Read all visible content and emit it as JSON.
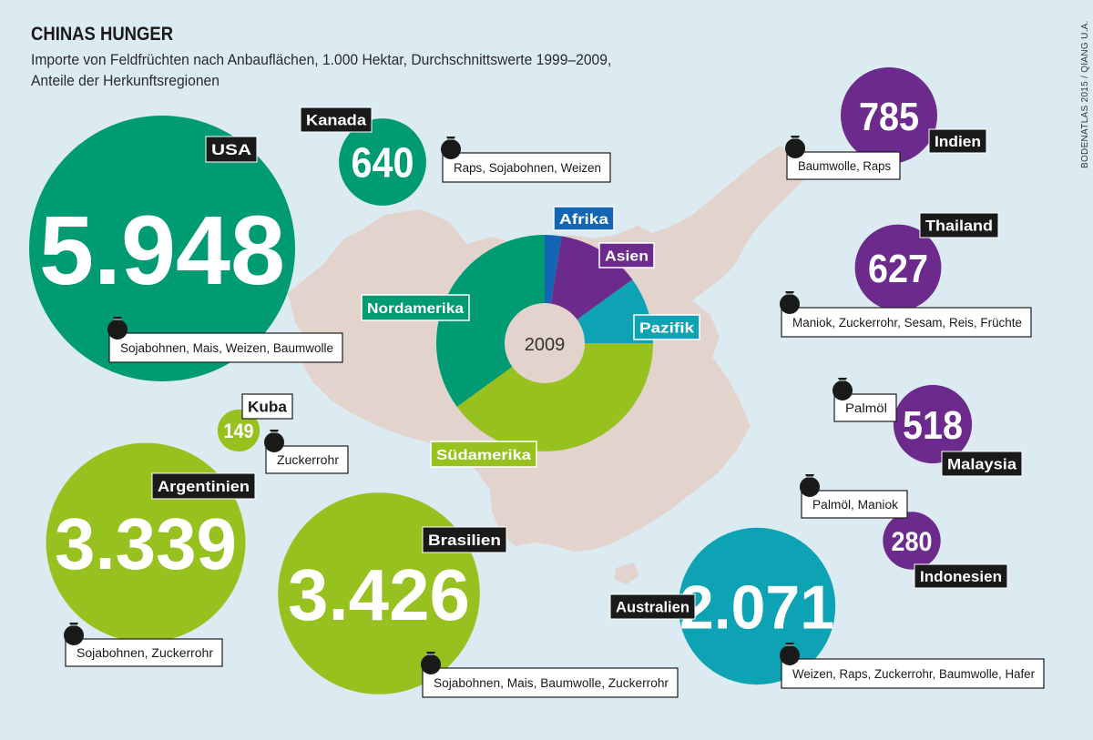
{
  "title": "CHINAS HUNGER",
  "subtitle_line1": "Importe von Feldfrüchten nach Anbauflächen, 1.000 Hektar, Durchschnittswerte 1999–2009,",
  "subtitle_line2": "Anteile der Herkunftsregionen",
  "credit": "BODENATLAS 2015 / QIANG U.A.",
  "colors": {
    "nordamerika": "#009a73",
    "suedamerika": "#97c11f",
    "asien": "#6b2a8c",
    "pazifik": "#0da3b5",
    "afrika": "#1466b4",
    "map": "#e3d3cd",
    "background": "#dcebf1"
  },
  "chart_data": [
    {
      "type": "bubble",
      "unit": "1.000 Hektar",
      "points": [
        {
          "country": "USA",
          "value": 5948,
          "label": "5.948",
          "region": "nordamerika",
          "crops": "Sojabohnen, Mais, Weizen, Baumwolle"
        },
        {
          "country": "Kanada",
          "value": 640,
          "label": "640",
          "region": "nordamerika",
          "crops": "Raps, Sojabohnen, Weizen"
        },
        {
          "country": "Kuba",
          "value": 149,
          "label": "149",
          "region": "suedamerika",
          "crops": "Zuckerrohr"
        },
        {
          "country": "Argentinien",
          "value": 3339,
          "label": "3.339",
          "region": "suedamerika",
          "crops": "Sojabohnen, Zuckerrohr"
        },
        {
          "country": "Brasilien",
          "value": 3426,
          "label": "3.426",
          "region": "suedamerika",
          "crops": "Sojabohnen, Mais, Baumwolle, Zuckerrohr"
        },
        {
          "country": "Indien",
          "value": 785,
          "label": "785",
          "region": "asien",
          "crops": "Baumwolle, Raps"
        },
        {
          "country": "Thailand",
          "value": 627,
          "label": "627",
          "region": "asien",
          "crops": "Maniok, Zuckerrohr, Sesam, Reis, Früchte"
        },
        {
          "country": "Malaysia",
          "value": 518,
          "label": "518",
          "region": "asien",
          "crops": "Palmöl"
        },
        {
          "country": "Indonesien",
          "value": 280,
          "label": "280",
          "region": "asien",
          "crops": "Palmöl, Maniok"
        },
        {
          "country": "Australien",
          "value": 2071,
          "label": "2.071",
          "region": "pazifik",
          "crops": "Weizen, Raps, Zuckerrohr, Baumwolle, Hafer"
        }
      ]
    },
    {
      "type": "pie",
      "center_label": "2009",
      "slices": [
        {
          "label": "Afrika",
          "value": 2.5,
          "region": "afrika"
        },
        {
          "label": "Asien",
          "value": 12.5,
          "region": "asien"
        },
        {
          "label": "Pazifik",
          "value": 10,
          "region": "pazifik"
        },
        {
          "label": "Südamerika",
          "value": 40,
          "region": "suedamerika"
        },
        {
          "label": "Nordamerika",
          "value": 35,
          "region": "nordamerika"
        }
      ]
    }
  ]
}
